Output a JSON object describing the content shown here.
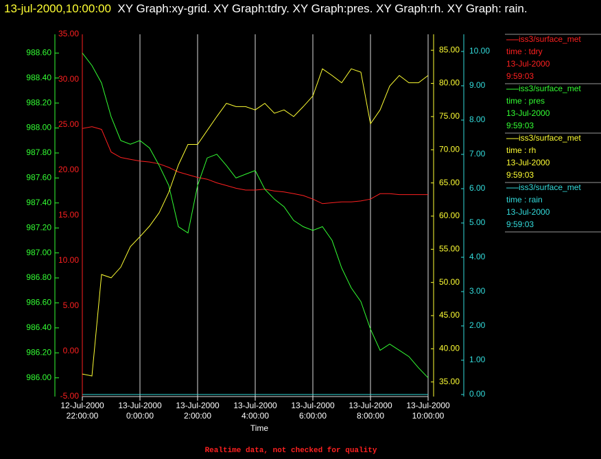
{
  "chart_data": {
    "type": "line",
    "timestamp": "13-jul-2000,10:00:00",
    "title": "XY Graph:xy-grid.  XY Graph:tdry.  XY Graph:pres.  XY Graph:rh.  XY Graph: rain.",
    "x_label": "Time",
    "footer": "Realtime data, not checked for quality",
    "xlim": [
      "2000-07-12T22:00",
      "2000-07-13T10:00"
    ],
    "xticks": [
      {
        "value": "2000-07-12T22:00",
        "label": [
          "12-Jul-2000",
          "22:00:00"
        ]
      },
      {
        "value": "2000-07-13T00:00",
        "label": [
          "13-Jul-2000",
          "0:00:00"
        ]
      },
      {
        "value": "2000-07-13T02:00",
        "label": [
          "13-Jul-2000",
          "2:00:00"
        ]
      },
      {
        "value": "2000-07-13T04:00",
        "label": [
          "13-Jul-2000",
          "4:00:00"
        ]
      },
      {
        "value": "2000-07-13T06:00",
        "label": [
          "13-Jul-2000",
          "6:00:00"
        ]
      },
      {
        "value": "2000-07-13T08:00",
        "label": [
          "13-Jul-2000",
          "8:00:00"
        ]
      },
      {
        "value": "2000-07-13T10:00",
        "label": [
          "13-Jul-2000",
          "10:00:00"
        ]
      }
    ],
    "grid": true,
    "x": [
      "2000-07-12T22:00",
      "2000-07-12T22:20",
      "2000-07-12T22:40",
      "2000-07-12T23:00",
      "2000-07-12T23:20",
      "2000-07-12T23:40",
      "2000-07-13T00:00",
      "2000-07-13T00:20",
      "2000-07-13T00:40",
      "2000-07-13T01:00",
      "2000-07-13T01:20",
      "2000-07-13T01:40",
      "2000-07-13T02:00",
      "2000-07-13T02:20",
      "2000-07-13T02:40",
      "2000-07-13T03:00",
      "2000-07-13T03:20",
      "2000-07-13T03:40",
      "2000-07-13T04:00",
      "2000-07-13T04:20",
      "2000-07-13T04:40",
      "2000-07-13T05:00",
      "2000-07-13T05:20",
      "2000-07-13T05:40",
      "2000-07-13T06:00",
      "2000-07-13T06:20",
      "2000-07-13T06:40",
      "2000-07-13T07:00",
      "2000-07-13T07:20",
      "2000-07-13T07:40",
      "2000-07-13T08:00",
      "2000-07-13T08:20",
      "2000-07-13T08:40",
      "2000-07-13T09:00",
      "2000-07-13T09:20",
      "2000-07-13T09:40",
      "2000-07-13T10:00"
    ],
    "series": [
      {
        "name": "iss3/surface_met",
        "field": "time : tdry",
        "date": "13-Jul-2000",
        "time": "9:59:03",
        "color": "#ff2020",
        "ylim": [
          -5,
          35
        ],
        "yticks": [
          {
            "value": -5,
            "label": "-5.00"
          },
          {
            "value": 0,
            "label": "0.00"
          },
          {
            "value": 5,
            "label": "5.00"
          },
          {
            "value": 10,
            "label": "10.00"
          },
          {
            "value": 15,
            "label": "15.00"
          },
          {
            "value": 20,
            "label": "20.00"
          },
          {
            "value": 25,
            "label": "25.00"
          },
          {
            "value": 30,
            "label": "30.00"
          },
          {
            "value": 35,
            "label": "35.00"
          }
        ],
        "values": [
          24.6,
          24.8,
          24.5,
          22,
          21.4,
          21.2,
          21,
          20.9,
          20.7,
          20.3,
          19.8,
          19.5,
          19.2,
          19,
          18.6,
          18.3,
          18,
          17.8,
          17.8,
          17.9,
          17.7,
          17.6,
          17.4,
          17.2,
          16.8,
          16.3,
          16.4,
          16.5,
          16.5,
          16.6,
          16.8,
          17.4,
          17.4,
          17.3,
          17.3,
          17.3,
          17.3
        ]
      },
      {
        "name": "iss3/surface_met",
        "field": "time : pres",
        "date": "13-Jul-2000",
        "time": "9:59:03",
        "color": "#33ff33",
        "ylim": [
          985.85,
          988.75
        ],
        "yticks": [
          {
            "value": 986.0,
            "label": "986.00"
          },
          {
            "value": 986.2,
            "label": "986.20"
          },
          {
            "value": 986.4,
            "label": "986.40"
          },
          {
            "value": 986.6,
            "label": "986.60"
          },
          {
            "value": 986.8,
            "label": "986.80"
          },
          {
            "value": 987.0,
            "label": "987.00"
          },
          {
            "value": 987.2,
            "label": "987.20"
          },
          {
            "value": 987.4,
            "label": "987.40"
          },
          {
            "value": 987.6,
            "label": "987.60"
          },
          {
            "value": 987.8,
            "label": "987.80"
          },
          {
            "value": 988.0,
            "label": "988.00"
          },
          {
            "value": 988.2,
            "label": "988.20"
          },
          {
            "value": 988.4,
            "label": "988.40"
          },
          {
            "value": 988.6,
            "label": "988.60"
          }
        ],
        "values": [
          988.6,
          988.5,
          988.36,
          988.09,
          987.9,
          987.87,
          987.9,
          987.84,
          987.7,
          987.54,
          987.21,
          987.16,
          987.54,
          987.76,
          987.79,
          987.7,
          987.6,
          987.63,
          987.66,
          987.51,
          987.43,
          987.37,
          987.26,
          987.21,
          987.18,
          987.21,
          987.1,
          986.88,
          986.72,
          986.61,
          986.39,
          986.22,
          986.27,
          986.22,
          986.17,
          986.08,
          986.0
        ]
      },
      {
        "name": "iss3/surface_met",
        "field": "time : rh",
        "date": "13-Jul-2000",
        "time": "9:59:03",
        "color": "#ffff33",
        "ylim": [
          32.8,
          87.4
        ],
        "yticks": [
          {
            "value": 35,
            "label": "35.00"
          },
          {
            "value": 40,
            "label": "40.00"
          },
          {
            "value": 45,
            "label": "45.00"
          },
          {
            "value": 50,
            "label": "50.00"
          },
          {
            "value": 55,
            "label": "55.00"
          },
          {
            "value": 60,
            "label": "60.00"
          },
          {
            "value": 65,
            "label": "65.00"
          },
          {
            "value": 70,
            "label": "70.00"
          },
          {
            "value": 75,
            "label": "75.00"
          },
          {
            "value": 80,
            "label": "80.00"
          },
          {
            "value": 85,
            "label": "85.00"
          }
        ],
        "values": [
          36.2,
          35.9,
          51.2,
          50.7,
          52.3,
          55.4,
          56.9,
          58.5,
          60.5,
          63.6,
          67.7,
          70.8,
          70.8,
          72.9,
          75,
          77,
          76.5,
          76.5,
          76,
          77,
          75.5,
          76,
          75,
          76.5,
          78.1,
          82.2,
          81.2,
          80.1,
          82.2,
          81.7,
          73.9,
          76,
          79.6,
          81.2,
          80.1,
          80.1,
          81.2
        ]
      },
      {
        "name": "iss3/surface_met",
        "field": "time : rain",
        "date": "13-Jul-2000",
        "time": "9:59:03",
        "color": "#33dddd",
        "ylim": [
          -0.06,
          10.5
        ],
        "yticks": [
          {
            "value": 0,
            "label": "0.00"
          },
          {
            "value": 1,
            "label": "1.00"
          },
          {
            "value": 2,
            "label": "2.00"
          },
          {
            "value": 3,
            "label": "3.00"
          },
          {
            "value": 4,
            "label": "4.00"
          },
          {
            "value": 5,
            "label": "5.00"
          },
          {
            "value": 6,
            "label": "6.00"
          },
          {
            "value": 7,
            "label": "7.00"
          },
          {
            "value": 8,
            "label": "8.00"
          },
          {
            "value": 9,
            "label": "9.00"
          },
          {
            "value": 10,
            "label": "10.00"
          }
        ],
        "values": [
          0,
          0,
          0,
          0,
          0,
          0,
          0,
          0,
          0,
          0,
          0,
          0,
          0,
          0,
          0,
          0,
          0,
          0,
          0,
          0,
          0,
          0,
          0,
          0,
          0,
          0,
          0,
          0,
          0,
          0,
          0,
          0,
          0,
          0,
          0,
          0,
          0
        ]
      }
    ]
  }
}
